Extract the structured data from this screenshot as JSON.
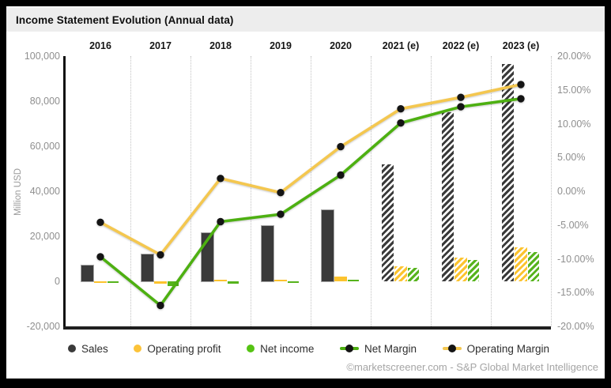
{
  "header": {
    "title": "Income Statement Evolution (Annual data)"
  },
  "y_axis_left": {
    "title": "Million USD",
    "tick_labels": [
      "100,000",
      "80,000",
      "60,000",
      "40,000",
      "20,000",
      "0",
      "-20,000"
    ],
    "max": 100000,
    "min": -20000
  },
  "y_axis_right": {
    "tick_labels": [
      "20.00%",
      "15.00%",
      "10.00%",
      "5.00%",
      "0.00%",
      "-5.00%",
      "-10.00%",
      "-15.00%",
      "-20.00%"
    ],
    "max": 20,
    "min": -20
  },
  "chart_data": {
    "type": "bar+line",
    "categories": [
      "2016",
      "2017",
      "2018",
      "2019",
      "2020",
      "2021 (e)",
      "2022 (e)",
      "2023 (e)"
    ],
    "estimated_categories": [
      "2021 (e)",
      "2022 (e)",
      "2023 (e)"
    ],
    "bar_series": [
      {
        "name": "Sales",
        "unit": "Million USD",
        "color": "#3a3a3a",
        "values": [
          7000,
          11800,
          21500,
          24600,
          31500,
          52000,
          75000,
          96500
        ]
      },
      {
        "name": "Operating profit",
        "unit": "Million USD",
        "color": "#fcc32e",
        "values": [
          -670,
          -1000,
          400,
          300,
          2000,
          6500,
          10400,
          15200
        ]
      },
      {
        "name": "Net income",
        "unit": "Million USD",
        "color": "#56b31c",
        "values": [
          -675,
          -2000,
          -900,
          -870,
          720,
          5800,
          9600,
          13100
        ]
      }
    ],
    "line_series": [
      {
        "name": "Net Margin",
        "unit": "%",
        "color": "#4db011",
        "marker_color": "#141414",
        "values": [
          -9.7,
          -16.9,
          -4.5,
          -3.4,
          2.4,
          10.1,
          12.5,
          13.7
        ]
      },
      {
        "name": "Operating Margin",
        "unit": "%",
        "color": "#f4c74f",
        "marker_color": "#141414",
        "values": [
          -4.6,
          -9.4,
          1.9,
          -0.2,
          6.6,
          12.2,
          13.9,
          15.8
        ]
      }
    ],
    "ylim_left": [
      -20000,
      100000
    ],
    "ylim_right": [
      -20,
      20
    ],
    "grid": "vertical-dotted",
    "legend_position": "bottom"
  },
  "legend": {
    "items": [
      {
        "label": "Sales",
        "swatch": "dot",
        "color": "#3a3a3a"
      },
      {
        "label": "Operating profit",
        "swatch": "dot",
        "color": "#fcc339"
      },
      {
        "label": "Net income",
        "swatch": "dot",
        "color": "#55c313"
      },
      {
        "label": "Net Margin",
        "swatch": "line-dot",
        "color": "#4db011",
        "marker_color": "#141414"
      },
      {
        "label": "Operating Margin",
        "swatch": "line-dot",
        "color": "#f4c74f",
        "marker_color": "#141414"
      }
    ]
  },
  "footer": {
    "credit": "©marketscreener.com - S&P Global Market Intelligence"
  }
}
